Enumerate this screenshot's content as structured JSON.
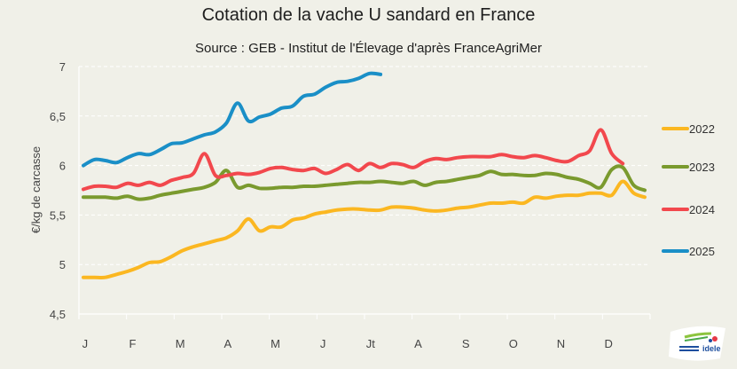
{
  "chart_data": {
    "type": "line",
    "title": "Cotation de la vache U sandard en France",
    "subtitle": "Source : GEB - Institut de l'Élevage d'après FranceAgriMer",
    "xlabel": "",
    "ylabel": "€/kg de carcasse",
    "ylim": [
      4.5,
      7
    ],
    "yticks": [
      "4,5",
      "5",
      "5,5",
      "6",
      "6,5",
      "7"
    ],
    "ytick_values": [
      4.5,
      5,
      5.5,
      6,
      6.5,
      7
    ],
    "categories": [
      "J",
      "F",
      "M",
      "A",
      "M",
      "J",
      "Jt",
      "A",
      "S",
      "O",
      "N",
      "D"
    ],
    "x_unit": "week",
    "x_range": [
      1,
      52
    ],
    "grid": "horizontal-dashed",
    "legend_position": "right",
    "series": [
      {
        "name": "2022",
        "color": "#fbb721",
        "values": [
          4.87,
          4.87,
          4.87,
          4.9,
          4.93,
          4.97,
          5.02,
          5.03,
          5.08,
          5.14,
          5.18,
          5.21,
          5.24,
          5.27,
          5.34,
          5.46,
          5.34,
          5.38,
          5.38,
          5.45,
          5.47,
          5.51,
          5.53,
          5.55,
          5.56,
          5.56,
          5.55,
          5.55,
          5.58,
          5.58,
          5.57,
          5.55,
          5.54,
          5.55,
          5.57,
          5.58,
          5.6,
          5.62,
          5.62,
          5.63,
          5.62,
          5.68,
          5.67,
          5.69,
          5.7,
          5.7,
          5.72,
          5.72,
          5.7,
          5.84,
          5.72,
          5.68
        ]
      },
      {
        "name": "2023",
        "color": "#7a9a2e",
        "values": [
          5.68,
          5.68,
          5.68,
          5.67,
          5.69,
          5.66,
          5.67,
          5.7,
          5.72,
          5.74,
          5.76,
          5.78,
          5.83,
          5.95,
          5.78,
          5.8,
          5.77,
          5.77,
          5.78,
          5.78,
          5.79,
          5.79,
          5.8,
          5.81,
          5.82,
          5.83,
          5.83,
          5.84,
          5.83,
          5.82,
          5.84,
          5.8,
          5.83,
          5.84,
          5.86,
          5.88,
          5.9,
          5.94,
          5.91,
          5.91,
          5.9,
          5.9,
          5.92,
          5.91,
          5.88,
          5.86,
          5.82,
          5.78,
          5.96,
          5.98,
          5.8,
          5.75
        ]
      },
      {
        "name": "2024",
        "color": "#f2484d",
        "values": [
          5.76,
          5.79,
          5.79,
          5.78,
          5.82,
          5.8,
          5.83,
          5.8,
          5.85,
          5.88,
          5.92,
          6.12,
          5.9,
          5.9,
          5.92,
          5.91,
          5.93,
          5.97,
          5.98,
          5.96,
          5.95,
          5.97,
          5.92,
          5.96,
          6.01,
          5.95,
          6.02,
          5.98,
          6.02,
          6.01,
          5.98,
          6.04,
          6.07,
          6.06,
          6.08,
          6.09,
          6.09,
          6.09,
          6.11,
          6.09,
          6.08,
          6.1,
          6.08,
          6.05,
          6.04,
          6.1,
          6.15,
          6.36,
          6.12,
          6.02
        ]
      },
      {
        "name": "2025",
        "color": "#1a8fc7",
        "values": [
          6.0,
          6.06,
          6.05,
          6.03,
          6.08,
          6.12,
          6.11,
          6.16,
          6.22,
          6.23,
          6.27,
          6.31,
          6.34,
          6.43,
          6.63,
          6.45,
          6.49,
          6.52,
          6.58,
          6.6,
          6.7,
          6.72,
          6.79,
          6.84,
          6.85,
          6.88,
          6.93,
          6.92
        ]
      }
    ]
  },
  "logo": {
    "text": "idele"
  }
}
